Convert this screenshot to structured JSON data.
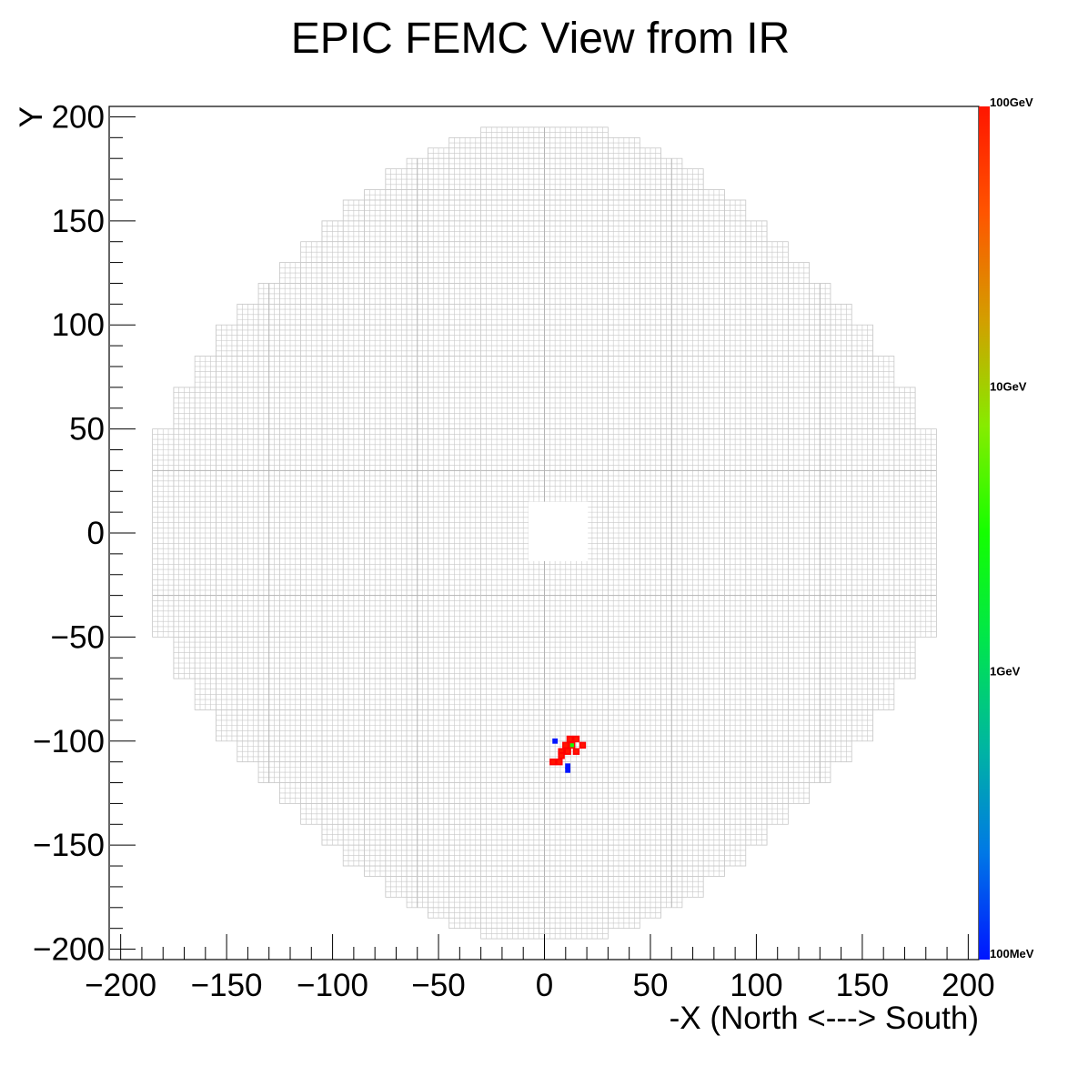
{
  "chart_data": {
    "type": "heatmap",
    "title": "EPIC FEMC View from IR",
    "xlabel": "-X (North <---> South)",
    "ylabel": "Y",
    "xlim": [
      -205,
      205
    ],
    "ylim": [
      -205,
      205
    ],
    "x_ticks": [
      -200,
      -150,
      -100,
      -50,
      0,
      50,
      100,
      150,
      200
    ],
    "y_ticks": [
      200,
      150,
      100,
      50,
      0,
      -50,
      -100,
      -150,
      -200
    ],
    "x_tick_labels": [
      "−200",
      "−150",
      "−100",
      "−50",
      "0",
      "50",
      "100",
      "150",
      "200"
    ],
    "y_tick_labels": [
      "200",
      "150",
      "100",
      "50",
      "0",
      "−50",
      "−100",
      "−150",
      "−200"
    ],
    "detector": {
      "cell_size": 2.5,
      "row_half_widths": [
        [
          195,
          30
        ],
        [
          190,
          45
        ],
        [
          185,
          55
        ],
        [
          180,
          65
        ],
        [
          175,
          75
        ],
        [
          165,
          85
        ],
        [
          160,
          95
        ],
        [
          150,
          105
        ],
        [
          140,
          115
        ],
        [
          130,
          125
        ],
        [
          120,
          135
        ],
        [
          110,
          145
        ],
        [
          100,
          155
        ],
        [
          85,
          165
        ],
        [
          70,
          175
        ],
        [
          50,
          185
        ]
      ],
      "beam_hole": {
        "x": [
          -7.5,
          20.5
        ],
        "y": [
          -13.5,
          15
        ]
      },
      "module_boundaries_x": [
        -130,
        -60,
        0,
        60,
        130
      ],
      "cell_color": "#c8c8c8"
    },
    "hits": [
      {
        "x": 5,
        "y": -100,
        "energy": "low"
      },
      {
        "x": 12,
        "y": -99,
        "energy": "high"
      },
      {
        "x": 15,
        "y": -99,
        "energy": "high"
      },
      {
        "x": 10,
        "y": -102,
        "energy": "high"
      },
      {
        "x": 13,
        "y": -102,
        "energy": "mid"
      },
      {
        "x": 18,
        "y": -102,
        "energy": "high"
      },
      {
        "x": 8,
        "y": -105,
        "energy": "high"
      },
      {
        "x": 11,
        "y": -105,
        "energy": "high"
      },
      {
        "x": 15,
        "y": -105,
        "energy": "high"
      },
      {
        "x": 8,
        "y": -107,
        "energy": "high"
      },
      {
        "x": 4,
        "y": -110,
        "energy": "high"
      },
      {
        "x": 7,
        "y": -110,
        "energy": "high"
      },
      {
        "x": 11,
        "y": -112,
        "energy": "low"
      },
      {
        "x": 11,
        "y": -114,
        "energy": "low"
      }
    ],
    "colorbar": {
      "scale": "log",
      "labels": [
        "100GeV",
        "10GeV",
        "1GeV",
        "100MeV"
      ],
      "colors": [
        "#ff1500",
        "#ff5500",
        "#d39e00",
        "#86ec00",
        "#14ff00",
        "#00e64b",
        "#00b6a0",
        "#0078e6",
        "#0015ff"
      ]
    },
    "hit_colors": {
      "high": "#ff1500",
      "mid": "#14ff00",
      "low": "#0015ff",
      "border": "#ff0000"
    },
    "grid": false,
    "legend": "none"
  }
}
